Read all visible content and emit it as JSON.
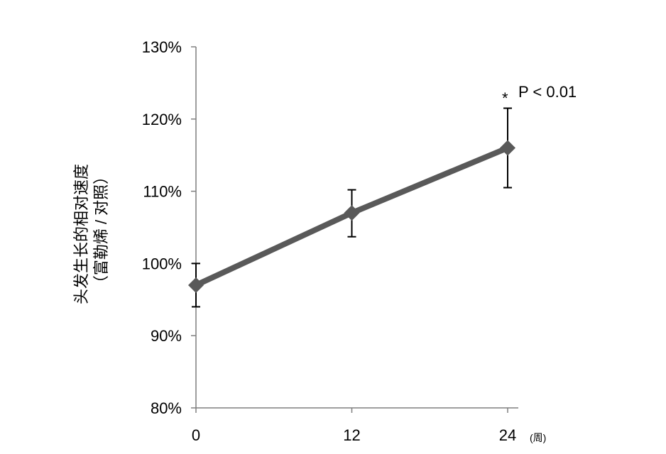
{
  "chart_data": {
    "type": "line",
    "title": "",
    "ylabel_line1": "头发生长的相对速度",
    "ylabel_line2": "（富勒烯 / 对照）",
    "x_unit": "(周)",
    "x_ticks": [
      "0",
      "12",
      "24"
    ],
    "y_ticks": [
      "80%",
      "90%",
      "100%",
      "110%",
      "120%",
      "130%"
    ],
    "ylim": [
      80,
      130
    ],
    "grid": false,
    "series": [
      {
        "x": [
          0,
          12,
          24
        ],
        "y": [
          97,
          107,
          116
        ],
        "err_low": [
          94,
          103.7,
          110.5
        ],
        "err_high": [
          100,
          110.2,
          121.5
        ],
        "color": "#595959",
        "marker": "diamond"
      }
    ],
    "annotation": {
      "star": "*",
      "text": "P < 0.01",
      "x": 24
    }
  }
}
